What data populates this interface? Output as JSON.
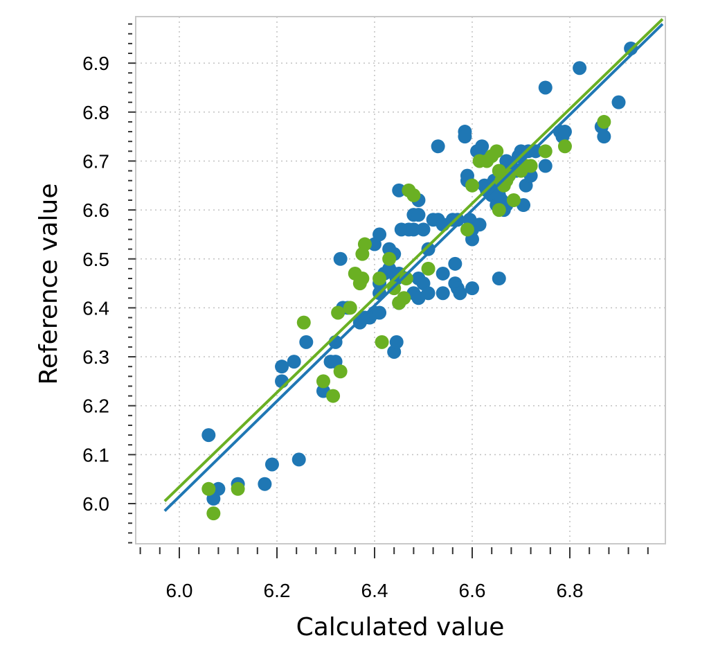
{
  "chart_data": {
    "type": "scatter",
    "title": "",
    "xlabel": "Calculated value",
    "ylabel": "Reference value",
    "xlim": [
      5.91,
      6.99
    ],
    "ylim": [
      5.91,
      6.99
    ],
    "x_ticks": [
      "6.0",
      "6.2",
      "6.4",
      "6.6",
      "6.8"
    ],
    "y_ticks": [
      "6.0",
      "6.1",
      "6.2",
      "6.3",
      "6.4",
      "6.5",
      "6.6",
      "6.7",
      "6.8",
      "6.9"
    ],
    "grid": true,
    "series": [
      {
        "color": "#1f77b4",
        "points": [
          [
            6.06,
            6.14
          ],
          [
            6.07,
            6.01
          ],
          [
            6.08,
            6.03
          ],
          [
            6.12,
            6.04
          ],
          [
            6.175,
            6.04
          ],
          [
            6.19,
            6.08
          ],
          [
            6.245,
            6.09
          ],
          [
            6.21,
            6.25
          ],
          [
            6.21,
            6.28
          ],
          [
            6.235,
            6.29
          ],
          [
            6.26,
            6.33
          ],
          [
            6.295,
            6.23
          ],
          [
            6.31,
            6.29
          ],
          [
            6.32,
            6.29
          ],
          [
            6.32,
            6.33
          ],
          [
            6.33,
            6.5
          ],
          [
            6.335,
            6.4
          ],
          [
            6.345,
            6.4
          ],
          [
            6.37,
            6.37
          ],
          [
            6.38,
            6.38
          ],
          [
            6.39,
            6.38
          ],
          [
            6.4,
            6.39
          ],
          [
            6.41,
            6.39
          ],
          [
            6.41,
            6.43
          ],
          [
            6.41,
            6.45
          ],
          [
            6.4,
            6.53
          ],
          [
            6.41,
            6.55
          ],
          [
            6.42,
            6.47
          ],
          [
            6.43,
            6.48
          ],
          [
            6.43,
            6.52
          ],
          [
            6.44,
            6.51
          ],
          [
            6.44,
            6.47
          ],
          [
            6.45,
            6.47
          ],
          [
            6.445,
            6.46
          ],
          [
            6.45,
            6.41
          ],
          [
            6.44,
            6.31
          ],
          [
            6.445,
            6.33
          ],
          [
            6.45,
            6.64
          ],
          [
            6.455,
            6.56
          ],
          [
            6.47,
            6.56
          ],
          [
            6.48,
            6.59
          ],
          [
            6.49,
            6.59
          ],
          [
            6.49,
            6.62
          ],
          [
            6.48,
            6.56
          ],
          [
            6.5,
            6.56
          ],
          [
            6.48,
            6.43
          ],
          [
            6.49,
            6.42
          ],
          [
            6.49,
            6.46
          ],
          [
            6.5,
            6.45
          ],
          [
            6.51,
            6.43
          ],
          [
            6.51,
            6.52
          ],
          [
            6.52,
            6.58
          ],
          [
            6.53,
            6.73
          ],
          [
            6.53,
            6.58
          ],
          [
            6.54,
            6.43
          ],
          [
            6.54,
            6.47
          ],
          [
            6.54,
            6.57
          ],
          [
            6.56,
            6.58
          ],
          [
            6.57,
            6.58
          ],
          [
            6.565,
            6.45
          ],
          [
            6.565,
            6.49
          ],
          [
            6.57,
            6.44
          ],
          [
            6.575,
            6.43
          ],
          [
            6.585,
            6.76
          ],
          [
            6.585,
            6.75
          ],
          [
            6.59,
            6.67
          ],
          [
            6.59,
            6.66
          ],
          [
            6.595,
            6.58
          ],
          [
            6.6,
            6.56
          ],
          [
            6.6,
            6.54
          ],
          [
            6.6,
            6.44
          ],
          [
            6.61,
            6.72
          ],
          [
            6.615,
            6.57
          ],
          [
            6.62,
            6.73
          ],
          [
            6.62,
            6.71
          ],
          [
            6.625,
            6.65
          ],
          [
            6.63,
            6.64
          ],
          [
            6.635,
            6.65
          ],
          [
            6.64,
            6.63
          ],
          [
            6.645,
            6.66
          ],
          [
            6.65,
            6.64
          ],
          [
            6.655,
            6.63
          ],
          [
            6.65,
            6.61
          ],
          [
            6.66,
            6.62
          ],
          [
            6.665,
            6.6
          ],
          [
            6.67,
            6.61
          ],
          [
            6.67,
            6.7
          ],
          [
            6.675,
            6.67
          ],
          [
            6.655,
            6.46
          ],
          [
            6.68,
            6.69
          ],
          [
            6.69,
            6.68
          ],
          [
            6.695,
            6.71
          ],
          [
            6.7,
            6.72
          ],
          [
            6.705,
            6.61
          ],
          [
            6.71,
            6.65
          ],
          [
            6.715,
            6.72
          ],
          [
            6.72,
            6.67
          ],
          [
            6.73,
            6.72
          ],
          [
            6.75,
            6.69
          ],
          [
            6.75,
            6.85
          ],
          [
            6.78,
            6.76
          ],
          [
            6.785,
            6.75
          ],
          [
            6.79,
            6.76
          ],
          [
            6.82,
            6.89
          ],
          [
            6.865,
            6.77
          ],
          [
            6.87,
            6.75
          ],
          [
            6.9,
            6.82
          ],
          [
            6.925,
            6.93
          ]
        ],
        "fit": [
          [
            5.97,
            5.985
          ],
          [
            6.99,
            6.98
          ]
        ]
      },
      {
        "color": "#6ab023",
        "points": [
          [
            6.06,
            6.03
          ],
          [
            6.07,
            5.98
          ],
          [
            6.12,
            6.03
          ],
          [
            6.255,
            6.37
          ],
          [
            6.295,
            6.25
          ],
          [
            6.315,
            6.22
          ],
          [
            6.325,
            6.39
          ],
          [
            6.33,
            6.27
          ],
          [
            6.35,
            6.4
          ],
          [
            6.36,
            6.47
          ],
          [
            6.37,
            6.45
          ],
          [
            6.375,
            6.46
          ],
          [
            6.375,
            6.51
          ],
          [
            6.38,
            6.53
          ],
          [
            6.41,
            6.46
          ],
          [
            6.415,
            6.33
          ],
          [
            6.43,
            6.5
          ],
          [
            6.44,
            6.44
          ],
          [
            6.45,
            6.41
          ],
          [
            6.46,
            6.42
          ],
          [
            6.465,
            6.46
          ],
          [
            6.47,
            6.64
          ],
          [
            6.48,
            6.63
          ],
          [
            6.51,
            6.48
          ],
          [
            6.59,
            6.56
          ],
          [
            6.6,
            6.65
          ],
          [
            6.615,
            6.7
          ],
          [
            6.63,
            6.7
          ],
          [
            6.64,
            6.71
          ],
          [
            6.65,
            6.72
          ],
          [
            6.655,
            6.68
          ],
          [
            6.66,
            6.66
          ],
          [
            6.665,
            6.65
          ],
          [
            6.67,
            6.66
          ],
          [
            6.675,
            6.67
          ],
          [
            6.655,
            6.6
          ],
          [
            6.685,
            6.62
          ],
          [
            6.7,
            6.68
          ],
          [
            6.71,
            6.69
          ],
          [
            6.72,
            6.69
          ],
          [
            6.75,
            6.72
          ],
          [
            6.79,
            6.73
          ],
          [
            6.87,
            6.78
          ]
        ],
        "fit": [
          [
            5.97,
            6.005
          ],
          [
            6.99,
            6.99
          ]
        ]
      }
    ]
  }
}
